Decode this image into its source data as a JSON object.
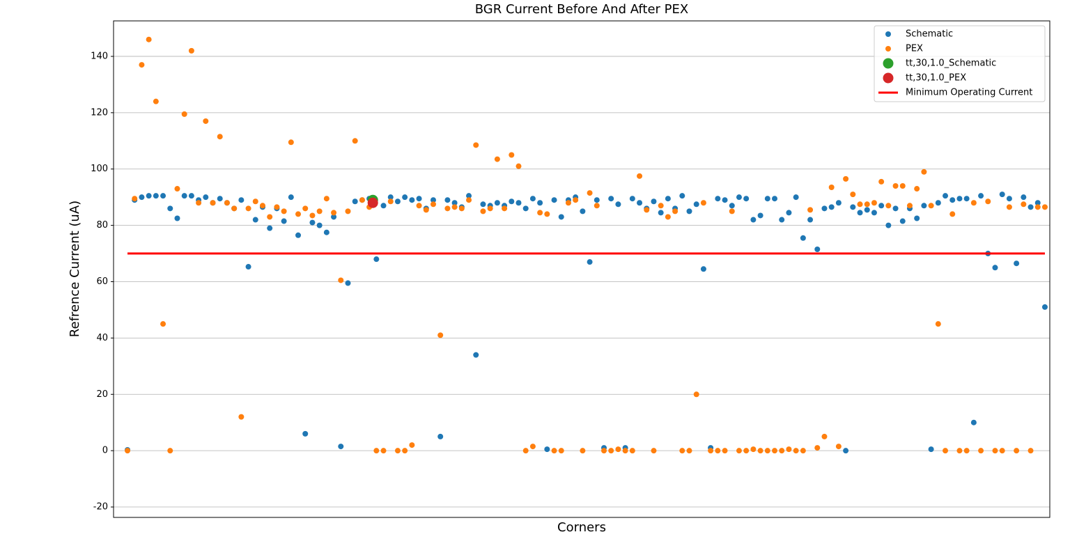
{
  "chart_data": {
    "type": "scatter",
    "title": "BGR Current Before And After PEX",
    "x_label": "Corners",
    "y_label": "Refrence Current (uA)",
    "xlim": [
      -1.96,
      129.69
    ],
    "ylim": [
      -23.7,
      152.6
    ],
    "yticks": [
      -20,
      0,
      20,
      40,
      60,
      80,
      100,
      120,
      140
    ],
    "grid": true,
    "legend": "upper right",
    "x": [
      0,
      1,
      2,
      3,
      4,
      5,
      6,
      7,
      8,
      9,
      10,
      11,
      12,
      13,
      14,
      15,
      16,
      17,
      18,
      19,
      20,
      21,
      22,
      23,
      24,
      25,
      26,
      27,
      28,
      29,
      30,
      31,
      32,
      33,
      34,
      35,
      36,
      37,
      38,
      39,
      40,
      41,
      42,
      43,
      44,
      45,
      46,
      47,
      48,
      49,
      50,
      51,
      52,
      53,
      54,
      55,
      56,
      57,
      58,
      59,
      60,
      61,
      62,
      63,
      64,
      65,
      66,
      67,
      68,
      69,
      70,
      71,
      72,
      73,
      74,
      75,
      76,
      77,
      78,
      79,
      80,
      81,
      82,
      83,
      84,
      85,
      86,
      87,
      88,
      89,
      90,
      91,
      92,
      93,
      94,
      95,
      96,
      97,
      98,
      99,
      100,
      101,
      102,
      103,
      104,
      105,
      106,
      107,
      108,
      109,
      110,
      111,
      112,
      113,
      114,
      115,
      116,
      117,
      118,
      119,
      120,
      121,
      122,
      123,
      124,
      125,
      126,
      127,
      128,
      129
    ],
    "series": [
      {
        "name": "Schematic",
        "color": "#1f77b4",
        "marker": "small",
        "values": [
          0.3,
          89,
          90,
          90.5,
          90.5,
          90.5,
          86,
          82.5,
          90.5,
          90.5,
          89,
          90,
          88,
          89.5,
          88,
          86,
          89,
          65.3,
          82,
          86.5,
          79,
          86,
          81.5,
          90,
          76.5,
          6,
          81,
          80,
          77.5,
          83,
          1.5,
          59.5,
          88.5,
          89,
          89.5,
          68,
          87,
          90,
          88.5,
          90,
          89,
          89.5,
          86,
          89,
          5,
          89,
          88,
          86.5,
          90.5,
          34,
          87.5,
          87,
          88,
          87,
          88.5,
          88,
          86,
          89.5,
          88,
          0.5,
          89,
          83,
          89,
          90,
          85,
          67,
          89,
          1,
          89.5,
          87.5,
          1,
          89.5,
          88,
          86,
          88.5,
          84.5,
          89.5,
          86,
          90.5,
          85,
          87.5,
          64.5,
          1,
          89.5,
          89,
          87,
          90,
          89.5,
          82,
          83.5,
          89.5,
          89.5,
          82,
          84.5,
          90,
          75.5,
          82,
          71.5,
          86,
          86.5,
          88,
          0,
          86.5,
          84.5,
          85.5,
          84.5,
          87,
          80,
          86,
          81.5,
          86,
          82.5,
          87,
          0.5,
          88,
          90.5,
          89,
          89.5,
          89.5,
          10,
          90.5,
          70,
          65,
          91,
          89.5,
          66.5,
          90,
          86.5,
          88,
          51
        ]
      },
      {
        "name": "PEX",
        "color": "#ff7f0e",
        "marker": "small",
        "values": [
          0,
          89.5,
          137,
          146,
          124,
          45,
          0,
          93,
          119.5,
          142,
          88,
          117,
          88,
          111.5,
          88,
          86,
          12,
          86,
          88.5,
          87,
          83,
          86.5,
          85,
          109.5,
          84,
          86,
          83.5,
          85,
          89.5,
          84.5,
          60.5,
          85,
          110,
          89,
          86.5,
          0,
          0,
          88.5,
          0,
          0,
          2,
          87,
          85.5,
          87.5,
          41,
          86,
          86.5,
          86,
          89,
          108.5,
          85,
          86,
          103.5,
          86,
          105,
          101,
          0,
          1.5,
          84.5,
          84,
          0,
          0,
          88,
          89,
          0,
          91.5,
          87,
          0,
          0,
          0.5,
          0,
          0,
          97.5,
          85.5,
          0,
          87,
          83,
          85,
          0,
          0,
          20,
          88,
          0,
          0,
          0,
          85,
          0,
          0,
          0.5,
          0,
          0,
          0,
          0,
          0.5,
          0,
          0,
          85.5,
          1,
          5,
          93.5,
          1.5,
          96.5,
          91,
          87.5,
          87.5,
          88,
          95.5,
          87,
          94,
          94,
          87,
          93,
          99,
          87,
          45,
          0,
          84,
          0,
          0,
          88,
          0,
          88.5,
          0,
          0,
          86.5,
          0,
          87.5,
          0,
          86.5,
          86.5
        ]
      },
      {
        "name": "tt,30,1.0_Schematic",
        "color": "#2ca02c",
        "marker": "large",
        "x": [
          34.5
        ],
        "values": [
          89
        ]
      },
      {
        "name": "tt,30,1.0_PEX",
        "color": "#d62728",
        "marker": "large",
        "x": [
          34.5
        ],
        "values": [
          88
        ]
      },
      {
        "name": "Minimum Operating Current",
        "color": "#ff0000",
        "marker": "line",
        "x": [
          0,
          129
        ],
        "values": [
          70,
          70
        ]
      }
    ]
  }
}
